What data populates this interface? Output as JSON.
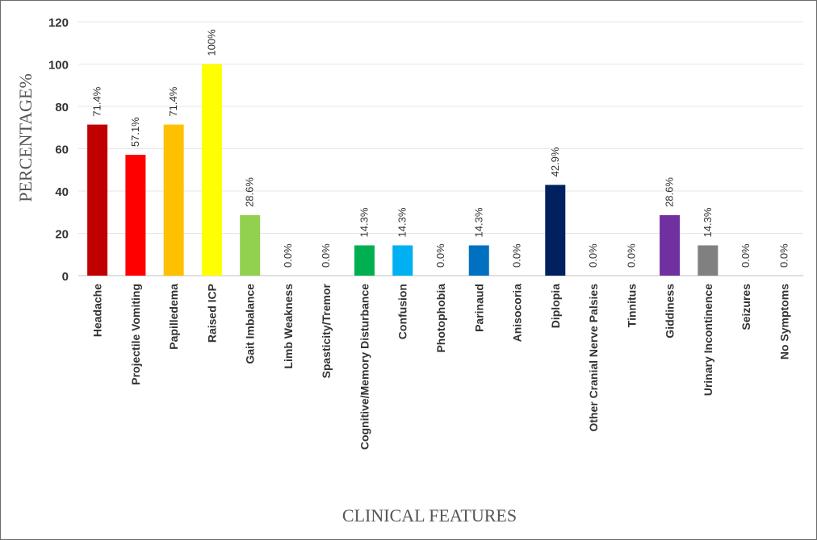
{
  "chart_data": {
    "type": "bar",
    "title": "",
    "xlabel": "CLINICAL FEATURES",
    "ylabel": "PERCENTAGE%",
    "ylim": [
      0,
      120
    ],
    "yticks": [
      0,
      20,
      40,
      60,
      80,
      100,
      120
    ],
    "grid": true,
    "legend": "none",
    "categories": [
      "Headache",
      "Projectile Vomiting",
      "Papilledema",
      "Raised ICP",
      "Gait Imbalance",
      "Limb Weakness",
      "Spasticity/Tremor",
      "Cognitive/Memory Disturbance",
      "Confusion",
      "Photophobia",
      "Parinaud",
      "Anisocoria",
      "Diplopia",
      "Other Cranial Nerve Palsies",
      "Tinnitus",
      "Giddiness",
      "Urinary Incontinence",
      "Seizures",
      "No Symptoms"
    ],
    "values": [
      71.4,
      57.1,
      71.4,
      100,
      28.6,
      0,
      0,
      14.3,
      14.3,
      0,
      14.3,
      0,
      42.9,
      0,
      0,
      28.6,
      14.3,
      0,
      0
    ],
    "data_labels": [
      "71.4%",
      "57.1%",
      "71.4%",
      "100%",
      "28.6%",
      "0.0%",
      "0.0%",
      "14.3%",
      "14.3%",
      "0.0%",
      "14.3%",
      "0.0%",
      "42.9%",
      "0.0%",
      "0.0%",
      "28.6%",
      "14.3%",
      "0.0%",
      "0.0%"
    ],
    "colors": [
      "#C00000",
      "#FF0000",
      "#FFC000",
      "#FFFF00",
      "#92D050",
      "#92D050",
      "#92D050",
      "#00B050",
      "#00B0F0",
      "#00B0F0",
      "#0070C0",
      "#0070C0",
      "#002060",
      "#002060",
      "#7030A0",
      "#7030A0",
      "#808080",
      "#808080",
      "#808080"
    ]
  }
}
